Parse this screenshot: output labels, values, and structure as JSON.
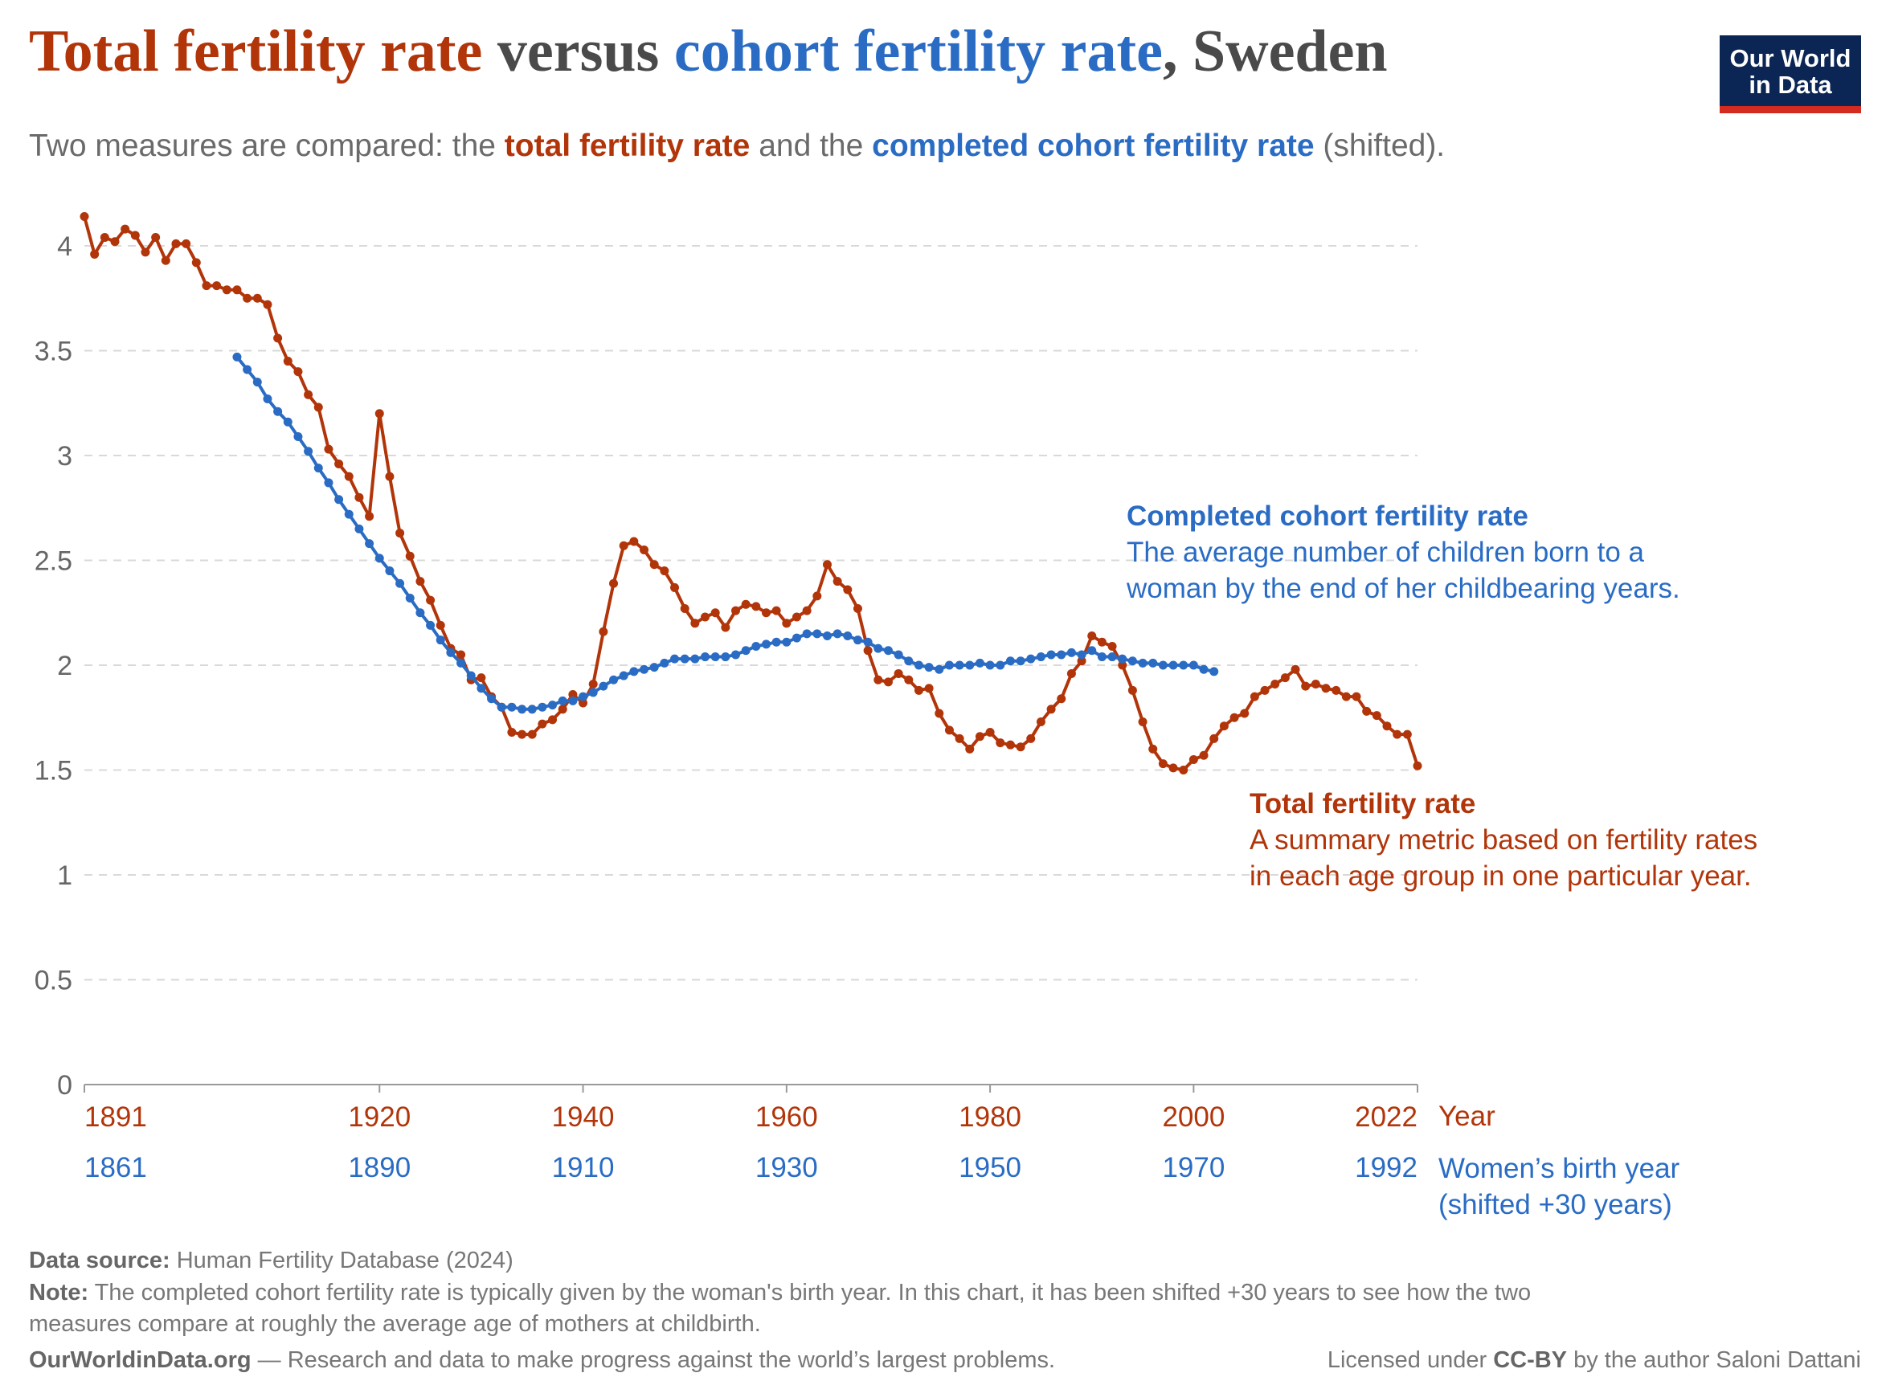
{
  "title": {
    "part1": "Total fertility rate",
    "part2": " versus ",
    "part3": "cohort fertility rate",
    "part4": ", Sweden"
  },
  "subtitle": {
    "part1": "Two measures are compared: the ",
    "part2": "total fertility rate",
    "part3": " and the ",
    "part4": "completed cohort fertility rate",
    "part5": " (shifted)."
  },
  "logo": {
    "line1": "Our World",
    "line2": "in Data"
  },
  "colors": {
    "tfr": "#b2350a",
    "cohort": "#2a6cc4",
    "grid": "#d9d9d9",
    "axis": "#999999"
  },
  "chart_data": {
    "type": "line",
    "ylim": [
      0,
      4
    ],
    "xlim": [
      1891,
      2022
    ],
    "grid": true,
    "y_ticks": [
      {
        "value": 0,
        "label": "0"
      },
      {
        "value": 0.5,
        "label": "0.5"
      },
      {
        "value": 1,
        "label": "1"
      },
      {
        "value": 1.5,
        "label": "1.5"
      },
      {
        "value": 2,
        "label": "2"
      },
      {
        "value": 2.5,
        "label": "2.5"
      },
      {
        "value": 3,
        "label": "3"
      },
      {
        "value": 3.5,
        "label": "3.5"
      },
      {
        "value": 4,
        "label": "4"
      }
    ],
    "x_ticks": [
      {
        "value": 1891,
        "year": "1891",
        "birth_year": "1861"
      },
      {
        "value": 1920,
        "year": "1920",
        "birth_year": "1890"
      },
      {
        "value": 1940,
        "year": "1940",
        "birth_year": "1910"
      },
      {
        "value": 1960,
        "year": "1960",
        "birth_year": "1930"
      },
      {
        "value": 1980,
        "year": "1980",
        "birth_year": "1950"
      },
      {
        "value": 2000,
        "year": "2000",
        "birth_year": "1970"
      },
      {
        "value": 2022,
        "year": "2022",
        "birth_year": "1992"
      }
    ],
    "xlabel": "Year",
    "xlabel2_line1": "Women’s birth year",
    "xlabel2_line2": "(shifted +30 years)",
    "series": [
      {
        "name": "Total fertility rate",
        "description_line1": "A summary metric based on fertility rates",
        "description_line2": "in each age group in one particular year.",
        "start_year": 1891,
        "values": [
          4.14,
          3.96,
          4.04,
          4.02,
          4.08,
          4.05,
          3.97,
          4.04,
          3.93,
          4.01,
          4.01,
          3.92,
          3.81,
          3.81,
          3.79,
          3.79,
          3.75,
          3.75,
          3.72,
          3.56,
          3.45,
          3.4,
          3.29,
          3.23,
          3.03,
          2.96,
          2.9,
          2.8,
          2.71,
          3.2,
          2.9,
          2.63,
          2.52,
          2.4,
          2.31,
          2.19,
          2.08,
          2.05,
          1.93,
          1.94,
          1.85,
          1.8,
          1.68,
          1.67,
          1.67,
          1.72,
          1.74,
          1.79,
          1.86,
          1.82,
          1.91,
          2.16,
          2.39,
          2.57,
          2.59,
          2.55,
          2.48,
          2.45,
          2.37,
          2.27,
          2.2,
          2.23,
          2.25,
          2.18,
          2.26,
          2.29,
          2.28,
          2.25,
          2.26,
          2.2,
          2.23,
          2.26,
          2.33,
          2.48,
          2.4,
          2.36,
          2.27,
          2.07,
          1.93,
          1.92,
          1.96,
          1.93,
          1.88,
          1.89,
          1.77,
          1.69,
          1.65,
          1.6,
          1.66,
          1.68,
          1.63,
          1.62,
          1.61,
          1.65,
          1.73,
          1.79,
          1.84,
          1.96,
          2.02,
          2.14,
          2.11,
          2.09,
          2.0,
          1.88,
          1.73,
          1.6,
          1.53,
          1.51,
          1.5,
          1.55,
          1.57,
          1.65,
          1.71,
          1.75,
          1.77,
          1.85,
          1.88,
          1.91,
          1.94,
          1.98,
          1.9,
          1.91,
          1.89,
          1.88,
          1.85,
          1.85,
          1.78,
          1.76,
          1.71,
          1.67,
          1.67,
          1.52
        ]
      },
      {
        "name": "Completed cohort fertility rate",
        "description_line1": "The average number of children born to a",
        "description_line2": "woman by the end of her childbearing years.",
        "start_year": 1906,
        "values": [
          3.47,
          3.41,
          3.35,
          3.27,
          3.21,
          3.16,
          3.09,
          3.02,
          2.94,
          2.87,
          2.79,
          2.72,
          2.65,
          2.58,
          2.51,
          2.45,
          2.39,
          2.32,
          2.25,
          2.19,
          2.12,
          2.06,
          2.01,
          1.95,
          1.89,
          1.84,
          1.8,
          1.8,
          1.79,
          1.79,
          1.8,
          1.81,
          1.83,
          1.83,
          1.85,
          1.87,
          1.9,
          1.93,
          1.95,
          1.97,
          1.98,
          1.99,
          2.01,
          2.03,
          2.03,
          2.03,
          2.04,
          2.04,
          2.04,
          2.05,
          2.07,
          2.09,
          2.1,
          2.11,
          2.11,
          2.13,
          2.15,
          2.15,
          2.14,
          2.15,
          2.14,
          2.12,
          2.11,
          2.08,
          2.07,
          2.05,
          2.02,
          2.0,
          1.99,
          1.98,
          2.0,
          2.0,
          2.0,
          2.01,
          2.0,
          2.0,
          2.02,
          2.02,
          2.03,
          2.04,
          2.05,
          2.05,
          2.06,
          2.05,
          2.07,
          2.04,
          2.04,
          2.03,
          2.02,
          2.01,
          2.01,
          2.0,
          2.0,
          2.0,
          2.0,
          1.98,
          1.97
        ]
      }
    ]
  },
  "footer": {
    "source_label": "Data source:",
    "source": " Human Fertility Database (2024)",
    "note_label": "Note:",
    "note_line1": " The completed cohort fertility rate is typically given by the woman's birth year. In this chart, it has been shifted +30 years to see how the two",
    "note_line2": "measures compare at roughly the average age of mothers at childbirth.",
    "site": "OurWorldinData.org",
    "tagline": " — Research and data to make progress against the world’s largest problems.",
    "license_pre": "Licensed under ",
    "license": "CC-BY",
    "license_post": " by the author Saloni Dattani"
  }
}
